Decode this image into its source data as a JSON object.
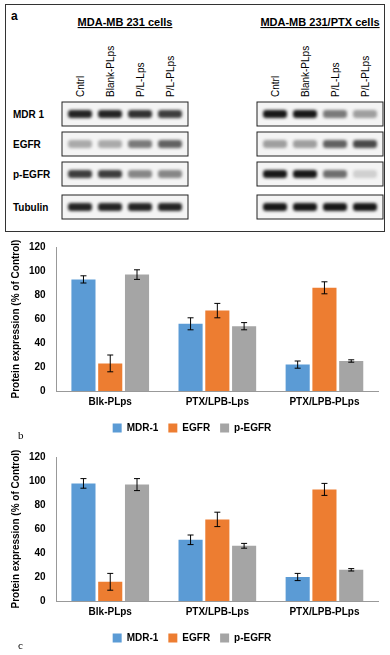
{
  "blot": {
    "label": "a",
    "row_labels": [
      "MDR 1",
      "EGFR",
      "p-EGFR",
      "Tubulin"
    ],
    "groups": [
      {
        "title": "MDA-MB 231 cells",
        "lanes": [
          "Cntrl",
          "Blank-PLps",
          "P/L-Lps",
          "P/L-PLps"
        ],
        "bands": [
          [
            0.85,
            0.85,
            0.8,
            0.75
          ],
          [
            0.3,
            0.3,
            0.5,
            0.6
          ],
          [
            0.75,
            0.75,
            0.45,
            0.45
          ],
          [
            0.85,
            0.85,
            0.85,
            0.85
          ]
        ]
      },
      {
        "title": "MDA-MB 231/PTX cells",
        "lanes": [
          "Cntrl",
          "Blank-PLps",
          "P/L-Lps",
          "P/L-PLps"
        ],
        "bands": [
          [
            0.9,
            0.9,
            0.5,
            0.35
          ],
          [
            0.35,
            0.35,
            0.6,
            0.7
          ],
          [
            0.9,
            0.9,
            0.55,
            0.15
          ],
          [
            0.9,
            0.9,
            0.9,
            0.9
          ]
        ]
      }
    ]
  },
  "chart_data": [
    {
      "type": "bar",
      "panel_label": "b",
      "y_label": "Protein expression (% of Control)",
      "categories": [
        "Blk-PLps",
        "PTX/LPB-Lps",
        "PTX/LPB-PLps"
      ],
      "series": [
        {
          "name": "MDR-1",
          "color": "#5b9bd5",
          "values": [
            93,
            56,
            22
          ],
          "errors": [
            3,
            5,
            3
          ]
        },
        {
          "name": "EGFR",
          "color": "#ed7d31",
          "values": [
            23,
            67,
            86
          ],
          "errors": [
            7,
            6,
            5
          ]
        },
        {
          "name": "p-EGFR",
          "color": "#a5a5a5",
          "values": [
            97,
            54,
            25
          ],
          "errors": [
            4,
            3,
            1
          ]
        }
      ],
      "ylim": [
        0,
        120
      ],
      "yticks": [
        0,
        20,
        40,
        60,
        80,
        100,
        120
      ],
      "grid": false,
      "legend": "bottom"
    },
    {
      "type": "bar",
      "panel_label": "c",
      "y_label": "Protein expression (% of Control)",
      "categories": [
        "Blk-PLps",
        "PTX/LPB-Lps",
        "PTX/LPB-PLps"
      ],
      "series": [
        {
          "name": "MDR-1",
          "color": "#5b9bd5",
          "values": [
            98,
            51,
            20
          ],
          "errors": [
            4,
            4,
            3
          ]
        },
        {
          "name": "EGFR",
          "color": "#ed7d31",
          "values": [
            16,
            68,
            93
          ],
          "errors": [
            7,
            6,
            5
          ]
        },
        {
          "name": "p-EGFR",
          "color": "#a5a5a5",
          "values": [
            97,
            46,
            26
          ],
          "errors": [
            5,
            2,
            1
          ]
        }
      ],
      "ylim": [
        0,
        120
      ],
      "yticks": [
        0,
        20,
        40,
        60,
        80,
        100,
        120
      ],
      "grid": false,
      "legend": "bottom"
    }
  ]
}
